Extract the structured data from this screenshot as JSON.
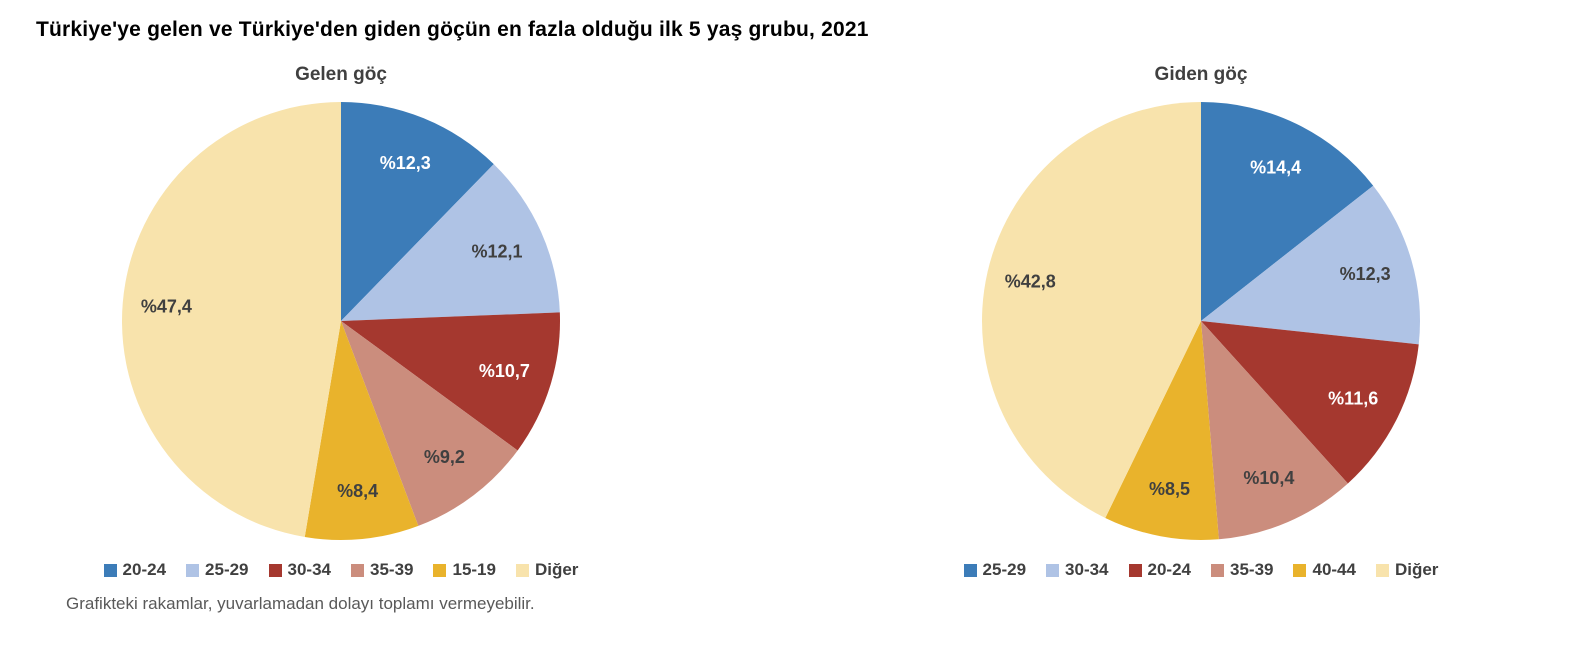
{
  "page": {
    "title": "Türkiye'ye gelen ve Türkiye'den giden göçün en fazla olduğu ilk 5 yaş grubu, 2021",
    "footnote": "Grafikteki rakamlar, yuvarlamadan dolayı toplamı vermeyebilir."
  },
  "colors": {
    "blue": "#3C7CB8",
    "light_blue": "#AFC3E5",
    "dark_red": "#A5382F",
    "salmon": "#CB8D7D",
    "gold": "#E9B32C",
    "cream": "#F8E3AC",
    "label_dark": "#404040",
    "label_light": "#FFFFFF"
  },
  "chart_data": [
    {
      "type": "pie",
      "title": "Gelen göç",
      "legend_position": "bottom",
      "start_angle": "top",
      "direction": "clockwise",
      "slices": [
        {
          "label": "20-24",
          "value": 12.3,
          "display": "%12,3",
          "color": "#3C7CB8",
          "label_color": "#FFFFFF"
        },
        {
          "label": "25-29",
          "value": 12.1,
          "display": "%12,1",
          "color": "#AFC3E5",
          "label_color": "#404040"
        },
        {
          "label": "30-34",
          "value": 10.7,
          "display": "%10,7",
          "color": "#A5382F",
          "label_color": "#FFFFFF"
        },
        {
          "label": "35-39",
          "value": 9.2,
          "display": "%9,2",
          "color": "#CB8D7D",
          "label_color": "#404040"
        },
        {
          "label": "15-19",
          "value": 8.4,
          "display": "%8,4",
          "color": "#E9B32C",
          "label_color": "#404040"
        },
        {
          "label": "Diğer",
          "value": 47.4,
          "display": "%47,4",
          "color": "#F8E3AC",
          "label_color": "#404040"
        }
      ]
    },
    {
      "type": "pie",
      "title": "Giden göç",
      "legend_position": "bottom",
      "start_angle": "top",
      "direction": "clockwise",
      "slices": [
        {
          "label": "25-29",
          "value": 14.4,
          "display": "%14,4",
          "color": "#3C7CB8",
          "label_color": "#FFFFFF"
        },
        {
          "label": "30-34",
          "value": 12.3,
          "display": "%12,3",
          "color": "#AFC3E5",
          "label_color": "#404040"
        },
        {
          "label": "20-24",
          "value": 11.6,
          "display": "%11,6",
          "color": "#A5382F",
          "label_color": "#FFFFFF"
        },
        {
          "label": "35-39",
          "value": 10.4,
          "display": "%10,4",
          "color": "#CB8D7D",
          "label_color": "#404040"
        },
        {
          "label": "40-44",
          "value": 8.5,
          "display": "%8,5",
          "color": "#E9B32C",
          "label_color": "#404040"
        },
        {
          "label": "Diğer",
          "value": 42.8,
          "display": "%42,8",
          "color": "#F8E3AC",
          "label_color": "#404040"
        }
      ]
    }
  ]
}
